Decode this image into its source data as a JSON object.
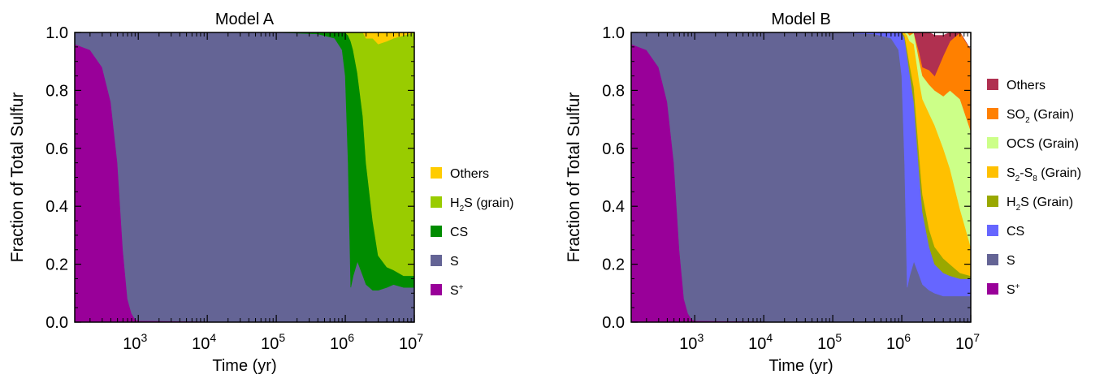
{
  "chart_data": [
    {
      "type": "area",
      "title": "Model A",
      "xlabel": "Time (yr)",
      "ylabel": "Fraction of Total Sulfur",
      "xscale": "log",
      "xlim": [
        120,
        10000000
      ],
      "ylim": [
        0,
        1
      ],
      "x_ticks": [
        {
          "value": 1000,
          "base": "10",
          "exp": "3"
        },
        {
          "value": 10000,
          "base": "10",
          "exp": "4"
        },
        {
          "value": 100000,
          "base": "10",
          "exp": "5"
        },
        {
          "value": 1000000,
          "base": "10",
          "exp": "6"
        },
        {
          "value": 10000000,
          "base": "10",
          "exp": "7"
        }
      ],
      "y_ticks": [
        "0.0",
        "0.2",
        "0.4",
        "0.6",
        "0.8",
        "1.0"
      ],
      "legend_position": "right",
      "x": [
        120,
        200,
        300,
        400,
        500,
        600,
        700,
        800,
        900,
        1000,
        100000,
        400000,
        700000,
        900000,
        1000000,
        1100000,
        1200000,
        1300000,
        1500000,
        1800000,
        2000000,
        2500000,
        3000000,
        4000000,
        5000000,
        7000000,
        10000000
      ],
      "series": [
        {
          "name": "S",
          "sup": "+",
          "sub": "",
          "color": "#990099",
          "values": [
            0.96,
            0.94,
            0.88,
            0.76,
            0.55,
            0.25,
            0.08,
            0.03,
            0.01,
            0.005,
            0,
            0,
            0,
            0,
            0,
            0,
            0,
            0,
            0,
            0,
            0,
            0,
            0,
            0,
            0,
            0,
            0
          ]
        },
        {
          "name": "S",
          "sup": "",
          "sub": "",
          "color": "#646495",
          "values": [
            0.04,
            0.06,
            0.12,
            0.24,
            0.45,
            0.75,
            0.92,
            0.97,
            0.99,
            0.995,
            1.0,
            0.995,
            0.98,
            0.94,
            0.85,
            0.55,
            0.12,
            0.16,
            0.21,
            0.16,
            0.13,
            0.11,
            0.11,
            0.12,
            0.13,
            0.12,
            0.12
          ]
        },
        {
          "name": "CS",
          "sup": "",
          "sub": "",
          "color": "#008c00",
          "values": [
            0,
            0,
            0,
            0,
            0,
            0,
            0,
            0,
            0,
            0,
            0,
            0.005,
            0.02,
            0.06,
            0.15,
            0.44,
            0.85,
            0.78,
            0.65,
            0.55,
            0.42,
            0.24,
            0.12,
            0.07,
            0.05,
            0.04,
            0.04
          ]
        },
        {
          "name": "H",
          "sup": "",
          "sub": "2",
          "suffix": "S (grain)",
          "color": "#99cc00",
          "values": [
            0,
            0,
            0,
            0,
            0,
            0,
            0,
            0,
            0,
            0,
            0,
            0,
            0,
            0,
            0,
            0.01,
            0.03,
            0.06,
            0.14,
            0.29,
            0.43,
            0.63,
            0.73,
            0.78,
            0.8,
            0.83,
            0.84
          ]
        },
        {
          "name": "Others",
          "sup": "",
          "sub": "",
          "color": "#ffcc00",
          "values": [
            0,
            0,
            0,
            0,
            0,
            0,
            0,
            0,
            0,
            0,
            0,
            0,
            0,
            0,
            0,
            0,
            0,
            0,
            0,
            0,
            0.02,
            0.02,
            0.04,
            0.03,
            0.02,
            0.01,
            0
          ]
        }
      ]
    },
    {
      "type": "area",
      "title": "Model B",
      "xlabel": "Time (yr)",
      "ylabel": "Fraction of Total Sulfur",
      "xscale": "log",
      "xlim": [
        120,
        10000000
      ],
      "ylim": [
        0,
        1
      ],
      "x_ticks": [
        {
          "value": 1000,
          "base": "10",
          "exp": "3"
        },
        {
          "value": 10000,
          "base": "10",
          "exp": "4"
        },
        {
          "value": 100000,
          "base": "10",
          "exp": "5"
        },
        {
          "value": 1000000,
          "base": "10",
          "exp": "6"
        },
        {
          "value": 10000000,
          "base": "10",
          "exp": "7"
        }
      ],
      "y_ticks": [
        "0.0",
        "0.2",
        "0.4",
        "0.6",
        "0.8",
        "1.0"
      ],
      "legend_position": "right",
      "x": [
        120,
        200,
        300,
        400,
        500,
        600,
        700,
        800,
        900,
        1000,
        100000,
        400000,
        700000,
        900000,
        1000000,
        1100000,
        1200000,
        1300000,
        1500000,
        1800000,
        2000000,
        2500000,
        3000000,
        4000000,
        5000000,
        7000000,
        10000000
      ],
      "series": [
        {
          "name": "S",
          "sup": "+",
          "sub": "",
          "color": "#990099",
          "values": [
            0.96,
            0.94,
            0.88,
            0.76,
            0.55,
            0.25,
            0.08,
            0.03,
            0.01,
            0.005,
            0,
            0,
            0,
            0,
            0,
            0,
            0,
            0,
            0,
            0,
            0,
            0,
            0,
            0,
            0,
            0,
            0
          ]
        },
        {
          "name": "S",
          "sup": "",
          "sub": "",
          "color": "#646495",
          "values": [
            0.04,
            0.06,
            0.12,
            0.24,
            0.45,
            0.75,
            0.92,
            0.97,
            0.99,
            0.995,
            1.0,
            0.995,
            0.98,
            0.94,
            0.85,
            0.55,
            0.12,
            0.16,
            0.21,
            0.16,
            0.13,
            0.11,
            0.1,
            0.09,
            0.09,
            0.09,
            0.09
          ]
        },
        {
          "name": "CS",
          "sup": "",
          "sub": "",
          "color": "#6666ff",
          "values": [
            0,
            0,
            0,
            0,
            0,
            0,
            0,
            0,
            0,
            0,
            0,
            0.005,
            0.02,
            0.06,
            0.15,
            0.43,
            0.8,
            0.7,
            0.55,
            0.35,
            0.25,
            0.15,
            0.1,
            0.08,
            0.07,
            0.06,
            0.06
          ]
        },
        {
          "name": "H",
          "sup": "",
          "sub": "2",
          "suffix": "S (Grain)",
          "color": "#99a800",
          "values": [
            0,
            0,
            0,
            0,
            0,
            0,
            0,
            0,
            0,
            0,
            0,
            0,
            0,
            0,
            0,
            0.01,
            0.02,
            0.03,
            0.05,
            0.06,
            0.06,
            0.06,
            0.06,
            0.05,
            0.04,
            0.02,
            0.01
          ]
        },
        {
          "name": "S",
          "sup": "",
          "sub": "2",
          "suffix": "-S",
          "sub2": "8",
          "suffix2": " (Grain)",
          "color": "#ffc000",
          "values": [
            0,
            0,
            0,
            0,
            0,
            0,
            0,
            0,
            0,
            0,
            0,
            0,
            0,
            0,
            0,
            0.01,
            0.05,
            0.08,
            0.15,
            0.26,
            0.33,
            0.4,
            0.42,
            0.38,
            0.33,
            0.22,
            0.1
          ]
        },
        {
          "name": "OCS (Grain)",
          "sup": "",
          "sub": "",
          "color": "#ccff88",
          "values": [
            0,
            0,
            0,
            0,
            0,
            0,
            0,
            0,
            0,
            0,
            0,
            0,
            0,
            0,
            0,
            0,
            0.01,
            0.02,
            0.05,
            0.07,
            0.08,
            0.1,
            0.12,
            0.18,
            0.27,
            0.38,
            0.4
          ]
        },
        {
          "name": "SO",
          "sup": "",
          "sub": "2",
          "suffix": " (Grain)",
          "color": "#ff8000",
          "values": [
            0,
            0,
            0,
            0,
            0,
            0,
            0,
            0,
            0,
            0,
            0,
            0,
            0,
            0,
            0,
            0,
            0.02,
            0.03,
            0.04,
            0.03,
            0.03,
            0.05,
            0.05,
            0.14,
            0.17,
            0.23,
            0.28
          ]
        },
        {
          "name": "Others",
          "sup": "",
          "sub": "",
          "color": "#b03050",
          "values": [
            0,
            0,
            0,
            0,
            0,
            0,
            0,
            0,
            0,
            0,
            0,
            0,
            0,
            0,
            0,
            0,
            0.01,
            0.05,
            0.09,
            0.2,
            0.22,
            0.13,
            0.14,
            0.07,
            0.04,
            0.01,
            0
          ]
        }
      ]
    }
  ]
}
